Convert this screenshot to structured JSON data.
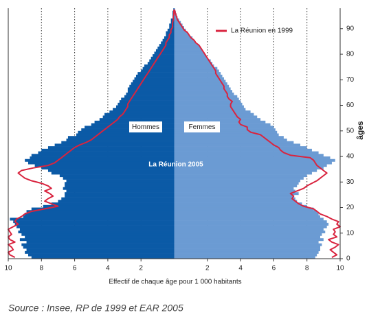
{
  "chart_data": {
    "type": "pyramid",
    "xlabel": "Effectif de chaque âge pour 1 000 habitants",
    "ylabel": "âges",
    "annotation": "La Réunion 2005",
    "source": "Source : Insee, RP de 1999 et EAR 2005",
    "xlim": [
      -10,
      10
    ],
    "xticks": [
      {
        "value": -10,
        "label": "10"
      },
      {
        "value": -8,
        "label": "8"
      },
      {
        "value": -6,
        "label": "6"
      },
      {
        "value": -4,
        "label": "4"
      },
      {
        "value": -2,
        "label": "2"
      },
      2,
      4,
      6,
      8,
      10
    ],
    "ylim": [
      0,
      98
    ],
    "yticks": [
      0,
      10,
      20,
      30,
      40,
      50,
      60,
      70,
      80,
      90
    ],
    "grid": true,
    "ages": [
      0,
      1,
      2,
      3,
      4,
      5,
      6,
      7,
      8,
      9,
      10,
      11,
      12,
      13,
      14,
      15,
      16,
      17,
      18,
      19,
      20,
      21,
      22,
      23,
      24,
      25,
      26,
      27,
      28,
      29,
      30,
      31,
      32,
      33,
      34,
      35,
      36,
      37,
      38,
      39,
      40,
      41,
      42,
      43,
      44,
      45,
      46,
      47,
      48,
      49,
      50,
      51,
      52,
      53,
      54,
      55,
      56,
      57,
      58,
      59,
      60,
      61,
      62,
      63,
      64,
      65,
      66,
      67,
      68,
      69,
      70,
      71,
      72,
      73,
      74,
      75,
      76,
      77,
      78,
      79,
      80,
      81,
      82,
      83,
      84,
      85,
      86,
      87,
      88,
      89,
      90,
      91,
      92,
      93,
      94,
      95,
      96,
      97
    ],
    "series": [
      {
        "name": "Hommes",
        "color": "#0b5aa6",
        "side": "left",
        "values": [
          8.6,
          8.8,
          9.0,
          8.9,
          9.1,
          9.2,
          8.9,
          9.3,
          9.0,
          9.2,
          9.4,
          9.3,
          9.5,
          9.6,
          9.7,
          9.9,
          9.1,
          9.0,
          8.9,
          8.6,
          7.9,
          7.4,
          7.0,
          6.8,
          6.6,
          6.6,
          6.5,
          6.7,
          6.6,
          6.6,
          6.5,
          6.7,
          6.9,
          7.4,
          7.6,
          8.0,
          8.4,
          8.8,
          9.0,
          8.7,
          8.6,
          8.2,
          8.0,
          7.6,
          7.2,
          6.8,
          6.5,
          6.4,
          5.9,
          5.8,
          5.6,
          5.4,
          5.0,
          4.8,
          4.5,
          4.3,
          4.2,
          3.9,
          3.7,
          3.5,
          3.4,
          3.3,
          3.2,
          3.0,
          2.9,
          2.8,
          2.8,
          2.7,
          2.6,
          2.5,
          2.4,
          2.3,
          2.2,
          2.0,
          1.9,
          1.8,
          1.6,
          1.5,
          1.4,
          1.3,
          1.2,
          1.1,
          1.0,
          0.9,
          0.8,
          0.7,
          0.6,
          0.5,
          0.5,
          0.4,
          0.3,
          0.3,
          0.2,
          0.2,
          0.1,
          0.1,
          0.1,
          0.05
        ]
      },
      {
        "name": "Femmes",
        "color": "#6b9bd3",
        "side": "right",
        "values": [
          8.5,
          8.6,
          8.7,
          8.8,
          8.8,
          8.9,
          8.7,
          9.0,
          8.8,
          8.9,
          9.1,
          9.0,
          9.2,
          9.3,
          9.2,
          9.0,
          8.8,
          8.7,
          8.6,
          8.4,
          8.0,
          7.7,
          7.4,
          7.3,
          7.2,
          7.5,
          7.3,
          7.2,
          7.4,
          7.5,
          7.6,
          7.8,
          8.0,
          8.3,
          8.6,
          9.0,
          9.2,
          9.5,
          9.7,
          9.4,
          9.0,
          8.7,
          8.3,
          8.0,
          7.6,
          7.2,
          6.8,
          6.6,
          6.3,
          6.2,
          6.1,
          6.0,
          5.8,
          5.5,
          5.2,
          5.0,
          4.8,
          4.6,
          4.3,
          4.2,
          4.1,
          4.0,
          3.9,
          3.8,
          3.6,
          3.5,
          3.4,
          3.3,
          3.2,
          3.1,
          3.0,
          2.9,
          2.8,
          2.7,
          2.6,
          2.4,
          2.3,
          2.2,
          2.0,
          1.9,
          1.8,
          1.7,
          1.6,
          1.5,
          1.3,
          1.2,
          1.1,
          0.9,
          0.8,
          0.7,
          0.6,
          0.5,
          0.4,
          0.3,
          0.2,
          0.15,
          0.1,
          0.05
        ]
      }
    ],
    "reference": {
      "name": "La Réunion en 1999",
      "color": "#d9243f",
      "left": [
        9.6,
        9.9,
        10.0,
        9.7,
        9.8,
        10.0,
        9.6,
        9.9,
        10.0,
        9.8,
        9.9,
        10.0,
        9.7,
        9.4,
        9.6,
        9.5,
        9.2,
        9.0,
        8.6,
        7.8,
        7.0,
        7.4,
        7.8,
        7.6,
        7.3,
        7.5,
        7.8,
        7.4,
        7.6,
        8.0,
        8.6,
        9.0,
        9.2,
        9.4,
        9.2,
        8.5,
        7.6,
        7.2,
        7.0,
        6.8,
        6.6,
        6.4,
        6.2,
        6.0,
        5.7,
        5.3,
        5.0,
        4.8,
        4.6,
        4.4,
        4.2,
        4.0,
        3.8,
        3.6,
        3.4,
        3.3,
        3.1,
        3.0,
        2.9,
        2.8,
        2.8,
        2.7,
        2.6,
        2.5,
        2.4,
        2.3,
        2.2,
        2.1,
        2.0,
        1.9,
        1.8,
        1.7,
        1.6,
        1.5,
        1.4,
        1.3,
        1.2,
        1.1,
        1.0,
        0.9,
        0.8,
        0.7,
        0.6,
        0.5,
        0.5,
        0.4,
        0.3,
        0.3,
        0.2,
        0.2,
        0.1,
        0.1,
        0.1,
        0.05,
        0.05,
        0.02,
        0.02,
        0.01
      ],
      "right": [
        9.5,
        9.8,
        9.6,
        9.4,
        9.7,
        9.9,
        9.5,
        9.3,
        9.8,
        9.6,
        9.7,
        9.6,
        10.0,
        9.8,
        9.9,
        9.5,
        9.2,
        8.8,
        8.6,
        8.4,
        7.8,
        7.5,
        7.3,
        7.1,
        7.2,
        7.0,
        7.4,
        7.8,
        8.0,
        8.3,
        8.6,
        8.8,
        9.0,
        9.2,
        9.0,
        8.8,
        8.6,
        8.5,
        8.4,
        8.2,
        7.0,
        6.6,
        6.4,
        6.3,
        6.0,
        5.8,
        5.6,
        5.4,
        5.2,
        4.6,
        4.4,
        4.4,
        4.0,
        3.9,
        4.0,
        3.8,
        3.7,
        3.6,
        3.5,
        3.4,
        3.4,
        3.5,
        3.3,
        3.2,
        3.2,
        3.1,
        3.0,
        3.0,
        2.9,
        2.8,
        2.7,
        2.6,
        2.5,
        2.5,
        2.4,
        2.3,
        2.2,
        2.1,
        2.0,
        1.9,
        1.8,
        1.7,
        1.6,
        1.5,
        1.3,
        1.2,
        1.0,
        0.9,
        0.8,
        0.6,
        0.5,
        0.4,
        0.3,
        0.2,
        0.15,
        0.1,
        0.05,
        0.02
      ]
    }
  }
}
